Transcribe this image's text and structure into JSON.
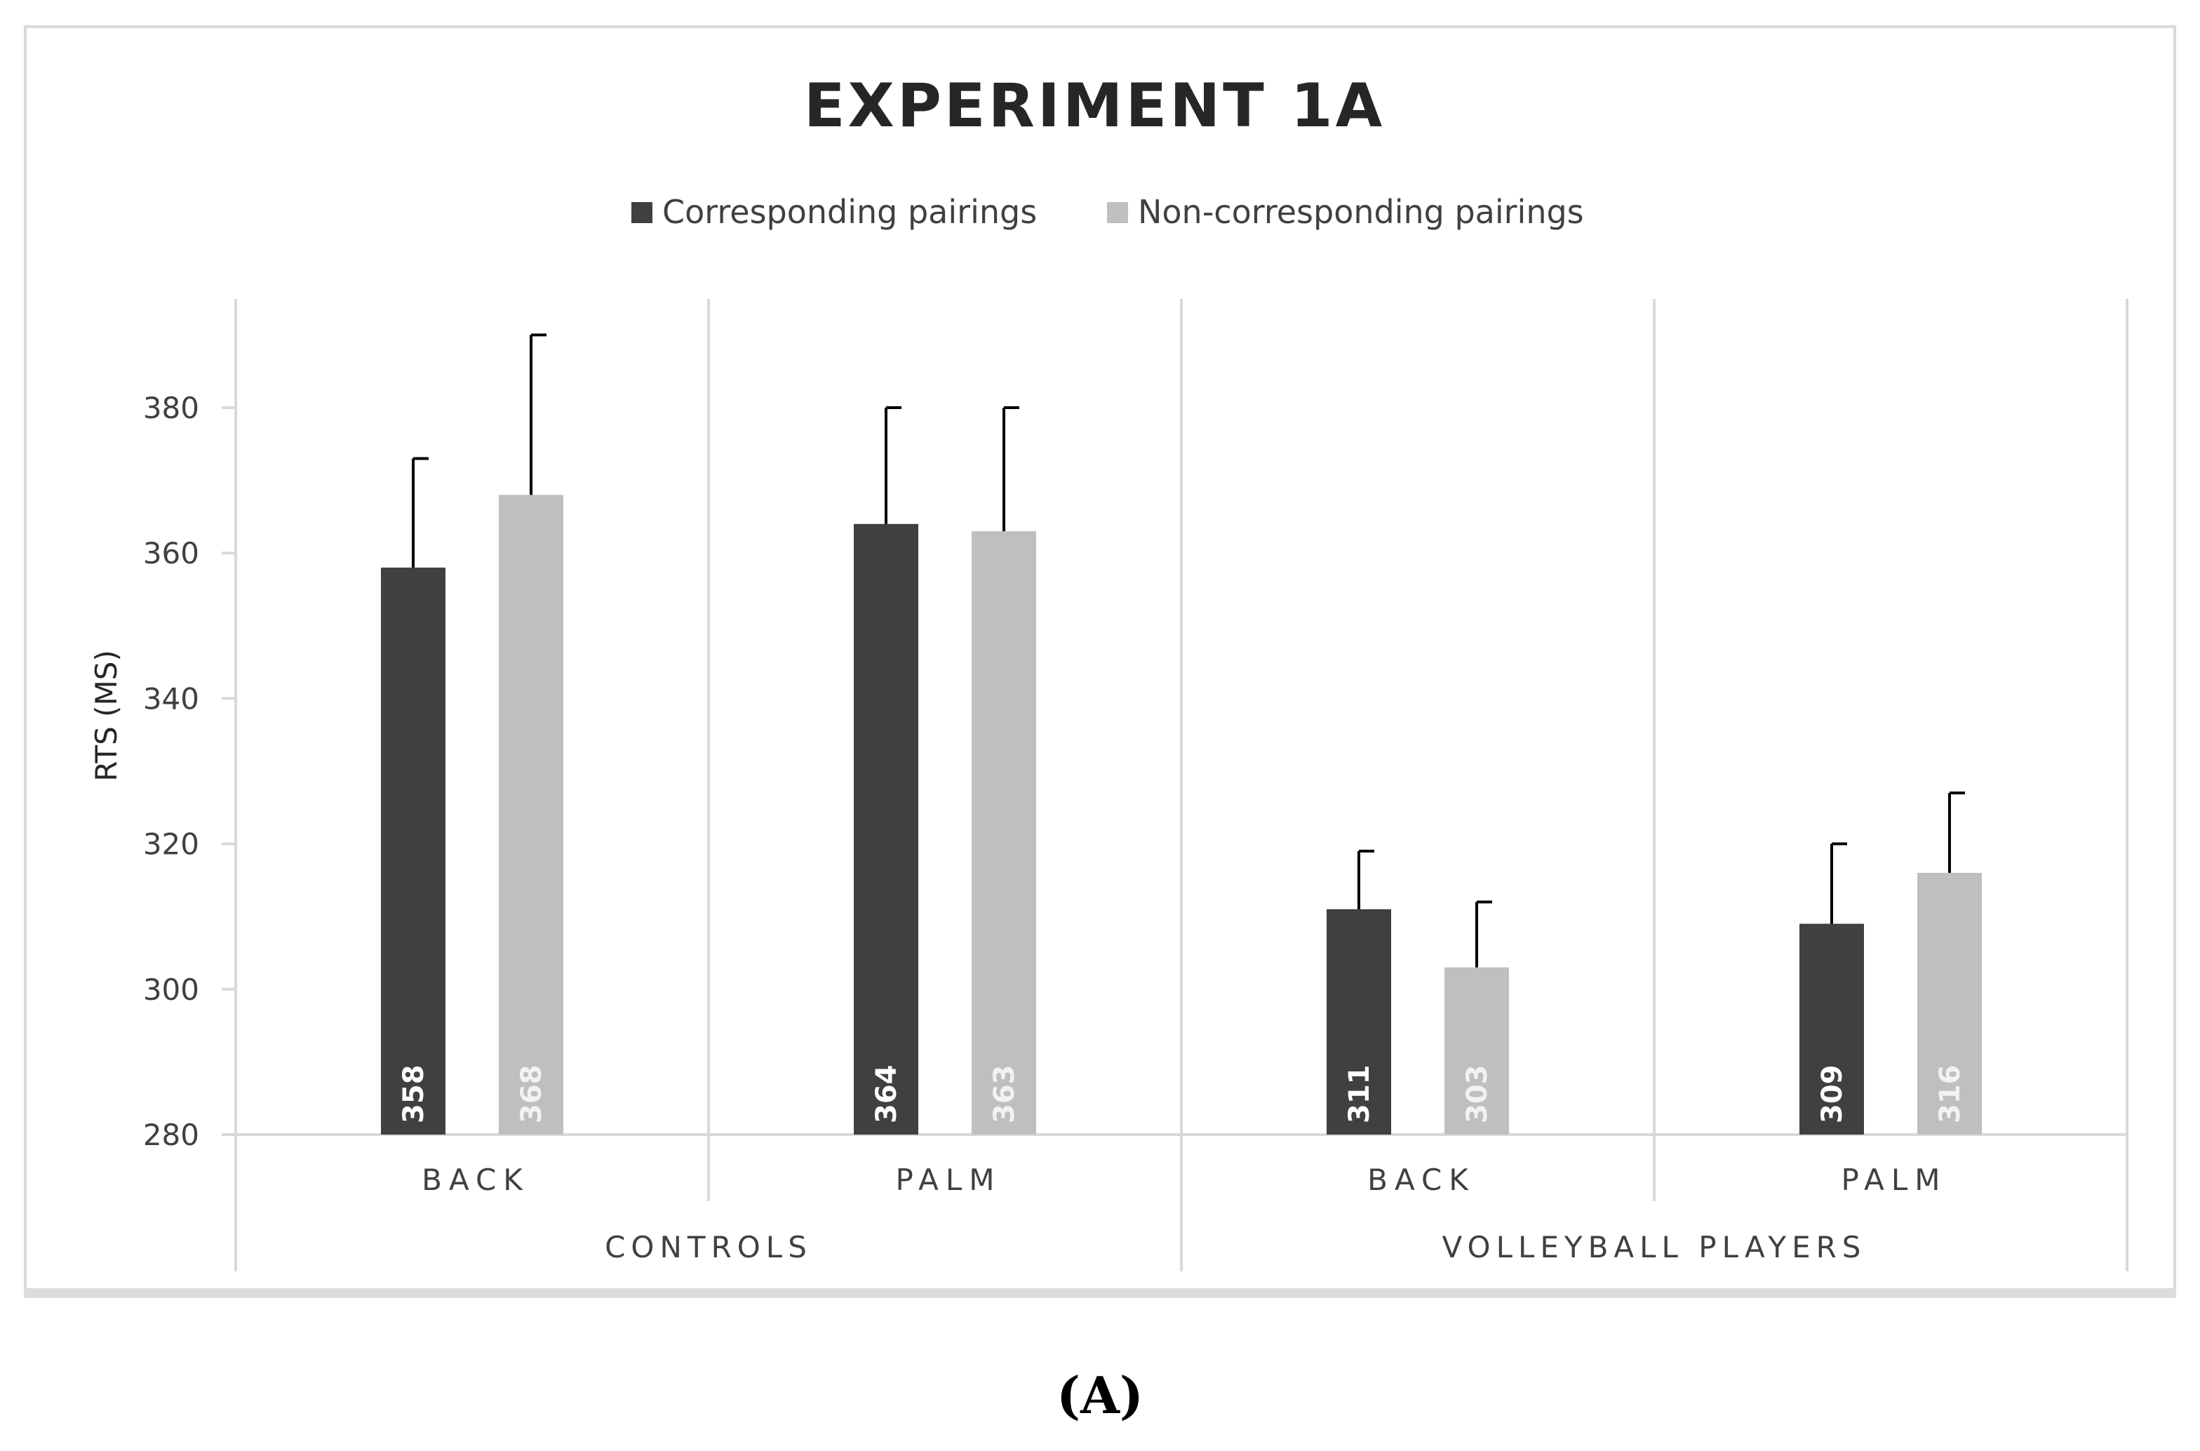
{
  "chart_data": {
    "type": "bar",
    "title": "EXPERIMENT  1A",
    "ylabel": "RTS (MS)",
    "xlabel": "",
    "ylim": [
      280,
      390
    ],
    "yticks": [
      280,
      300,
      320,
      340,
      360,
      380
    ],
    "groups": [
      {
        "label": "CONTROLS",
        "categories": [
          "BACK",
          "PALM"
        ]
      },
      {
        "label": "VOLLEYBALL PLAYERS",
        "categories": [
          "BACK",
          "PALM"
        ]
      }
    ],
    "categories": [
      "BACK",
      "PALM",
      "BACK",
      "PALM"
    ],
    "series": [
      {
        "name": "Corresponding pairings",
        "color": "#404040",
        "label_color": "#ffffff",
        "values": [
          358,
          364,
          311,
          309
        ],
        "error_upper": [
          373,
          380,
          319,
          320
        ]
      },
      {
        "name": "Non-corresponding pairings",
        "color": "#bfbfbf",
        "label_color": "#f2f2f2",
        "values": [
          368,
          363,
          303,
          316
        ],
        "error_upper": [
          390,
          380,
          312,
          327
        ]
      }
    ],
    "legend_position": "top-center",
    "grid": false
  },
  "caption": "(A)"
}
